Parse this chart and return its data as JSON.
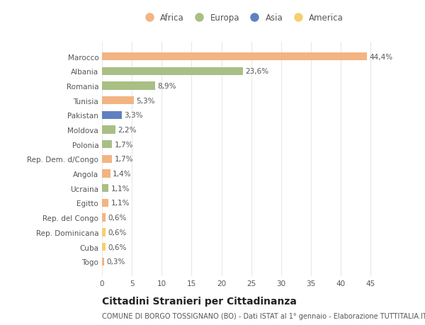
{
  "countries": [
    "Marocco",
    "Albania",
    "Romania",
    "Tunisia",
    "Pakistan",
    "Moldova",
    "Polonia",
    "Rep. Dem. d/Congo",
    "Angola",
    "Ucraina",
    "Egitto",
    "Rep. del Congo",
    "Rep. Dominicana",
    "Cuba",
    "Togo"
  ],
  "values": [
    44.4,
    23.6,
    8.9,
    5.3,
    3.3,
    2.2,
    1.7,
    1.7,
    1.4,
    1.1,
    1.1,
    0.6,
    0.6,
    0.6,
    0.3
  ],
  "labels": [
    "44,4%",
    "23,6%",
    "8,9%",
    "5,3%",
    "3,3%",
    "2,2%",
    "1,7%",
    "1,7%",
    "1,4%",
    "1,1%",
    "1,1%",
    "0,6%",
    "0,6%",
    "0,6%",
    "0,3%"
  ],
  "colors": [
    "#f2b482",
    "#a8bf85",
    "#a8bf85",
    "#f2b482",
    "#6080c0",
    "#a8bf85",
    "#a8bf85",
    "#f2b482",
    "#f2b482",
    "#a8bf85",
    "#f2b482",
    "#f2b482",
    "#f5d070",
    "#f5d070",
    "#f2b482"
  ],
  "legend_labels": [
    "Africa",
    "Europa",
    "Asia",
    "America"
  ],
  "legend_colors": [
    "#f2b482",
    "#a8bf85",
    "#6080c0",
    "#f5d070"
  ],
  "title": "Cittadini Stranieri per Cittadinanza",
  "subtitle": "COMUNE DI BORGO TOSSIGNANO (BO) - Dati ISTAT al 1° gennaio - Elaborazione TUTTITALIA.IT",
  "xlim": [
    0,
    47
  ],
  "xticks": [
    0,
    5,
    10,
    15,
    20,
    25,
    30,
    35,
    40,
    45
  ],
  "bg_color": "#ffffff",
  "grid_color": "#e8e8e8",
  "bar_height": 0.55,
  "label_fontsize": 7.5,
  "tick_fontsize": 7.5,
  "title_fontsize": 10,
  "subtitle_fontsize": 7
}
